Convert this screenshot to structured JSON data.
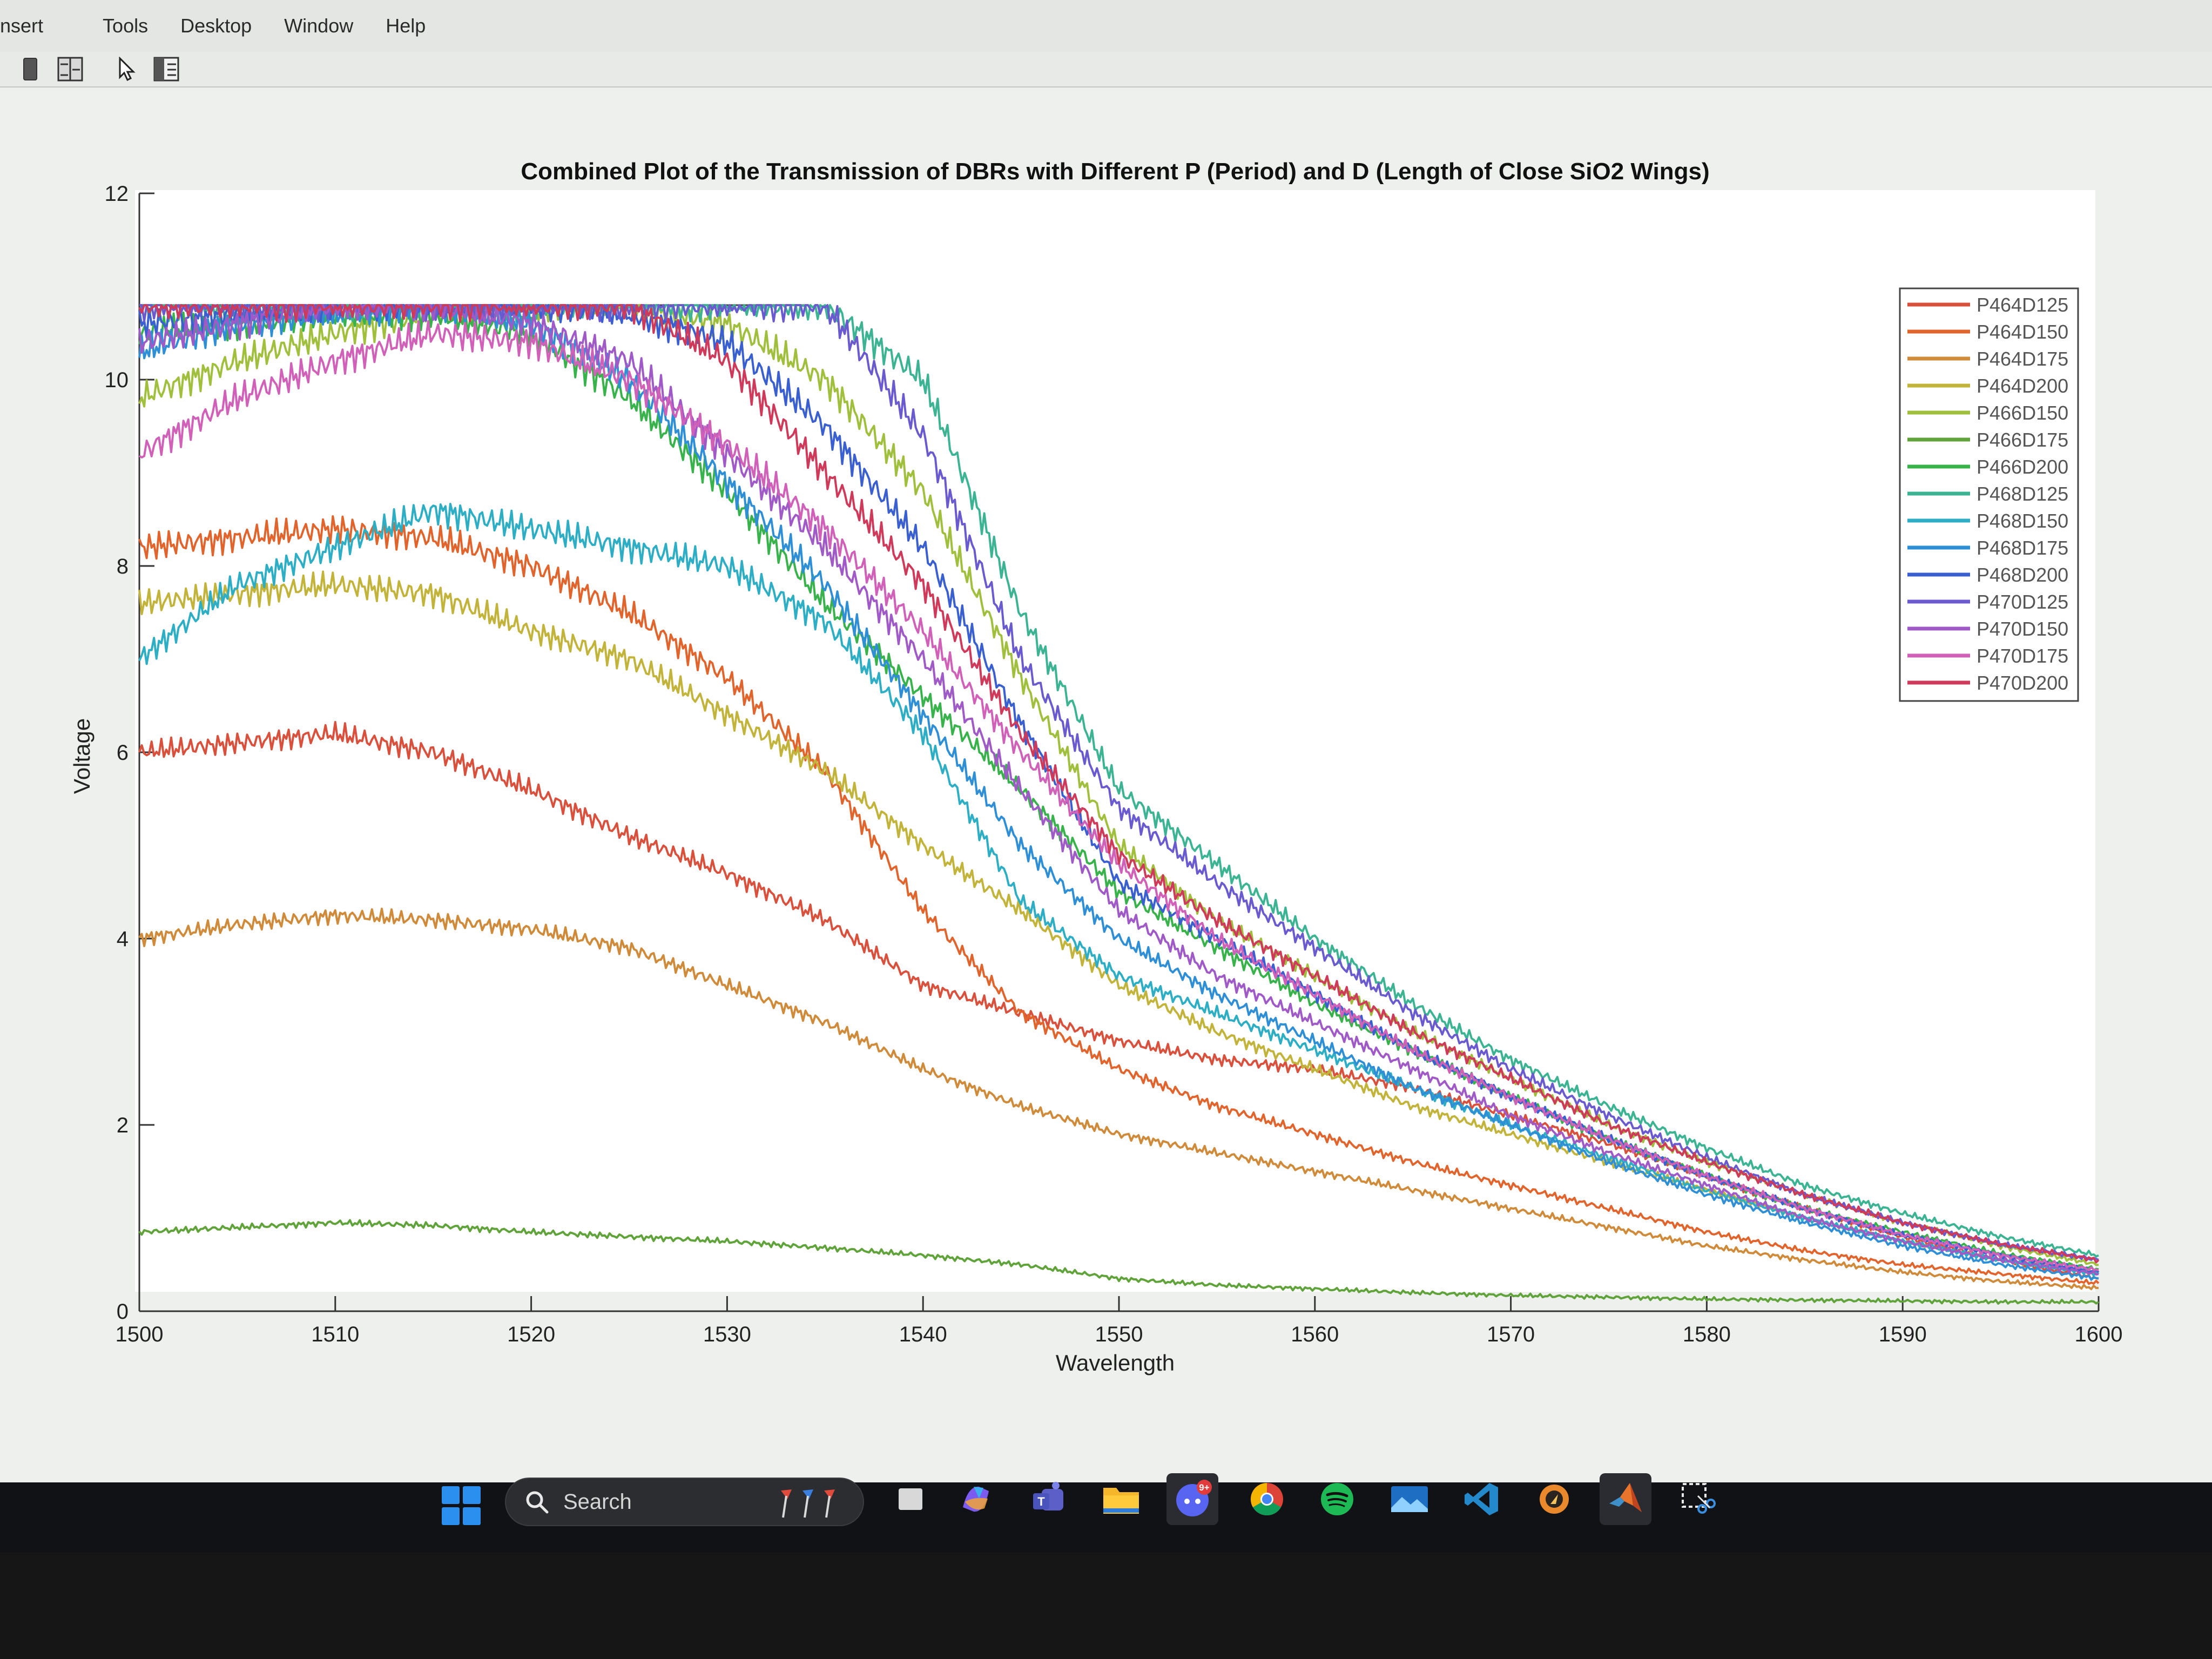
{
  "menubar": {
    "items": [
      "nsert",
      "Tools",
      "Desktop",
      "Window",
      "Help"
    ]
  },
  "toolbar": {
    "icons": [
      "dock-figure-icon",
      "property-editor-icon",
      "select-pointer-icon",
      "layout-panel-icon"
    ]
  },
  "taskbar": {
    "search_label": "Search",
    "badge": "9+",
    "apps": [
      "file-manager-icon",
      "copilot-icon",
      "teams-icon",
      "file-explorer-icon",
      "discord-icon",
      "chrome-icon",
      "spotify-icon",
      "photos-icon",
      "vscode-icon",
      "app-icon",
      "matlab-icon",
      "snipping-tool-icon"
    ]
  },
  "chart_data": {
    "type": "line",
    "title": "Combined Plot of the Transmission of DBRs with Different P (Period) and D (Length of Close SiO2 Wings)",
    "xlabel": "Wavelength",
    "ylabel": "Voltage",
    "xlim": [
      1500,
      1600
    ],
    "ylim": [
      0,
      12
    ],
    "xticks": [
      "1500",
      "1510",
      "1520",
      "1530",
      "1540",
      "1550",
      "1560",
      "1570",
      "1580",
      "1590",
      "1600"
    ],
    "yticks": [
      "0",
      "2",
      "4",
      "6",
      "8",
      "10",
      "12"
    ],
    "legend_position": "top-right",
    "grid": false,
    "saturation_level": 10.8,
    "x": [
      1500,
      1505,
      1510,
      1515,
      1520,
      1525,
      1530,
      1535,
      1540,
      1545,
      1550,
      1555,
      1560,
      1565,
      1570,
      1575,
      1580,
      1585,
      1590,
      1595,
      1600
    ],
    "series": [
      {
        "name": "P464D125",
        "color": "#d9503c",
        "values": [
          6.0,
          6.1,
          6.2,
          6.0,
          5.6,
          5.1,
          4.7,
          4.2,
          3.5,
          3.2,
          2.9,
          2.7,
          2.6,
          2.4,
          2.1,
          1.8,
          1.45,
          1.1,
          0.8,
          0.55,
          0.35
        ]
      },
      {
        "name": "P464D150",
        "color": "#e0642c",
        "values": [
          8.2,
          8.3,
          8.4,
          8.3,
          8.0,
          7.5,
          6.8,
          5.8,
          4.3,
          3.2,
          2.6,
          2.2,
          1.9,
          1.6,
          1.35,
          1.1,
          0.85,
          0.65,
          0.5,
          0.4,
          0.3
        ]
      },
      {
        "name": "P464D175",
        "color": "#cf8a3a",
        "values": [
          4.0,
          4.15,
          4.25,
          4.2,
          4.1,
          3.9,
          3.5,
          3.1,
          2.6,
          2.2,
          1.9,
          1.7,
          1.5,
          1.3,
          1.1,
          0.9,
          0.7,
          0.55,
          0.42,
          0.32,
          0.25
        ]
      },
      {
        "name": "P464D200",
        "color": "#c2b33a",
        "values": [
          7.6,
          7.7,
          7.8,
          7.7,
          7.3,
          7.0,
          6.4,
          5.8,
          5.0,
          4.3,
          3.5,
          3.0,
          2.6,
          2.2,
          1.9,
          1.6,
          1.3,
          1.0,
          0.75,
          0.55,
          0.4
        ]
      },
      {
        "name": "P466D150",
        "color": "#9fbf3d",
        "values": [
          9.8,
          10.2,
          10.5,
          10.7,
          10.8,
          10.8,
          10.6,
          10.0,
          8.8,
          6.8,
          5.0,
          4.2,
          3.6,
          3.0,
          2.5,
          2.0,
          1.6,
          1.25,
          0.95,
          0.7,
          0.5
        ]
      },
      {
        "name": "P466D175",
        "color": "#5fa33a",
        "values": [
          0.85,
          0.9,
          0.95,
          0.92,
          0.85,
          0.8,
          0.75,
          0.68,
          0.6,
          0.5,
          0.35,
          0.28,
          0.24,
          0.2,
          0.17,
          0.15,
          0.13,
          0.12,
          0.11,
          0.1,
          0.1
        ]
      },
      {
        "name": "P466D200",
        "color": "#38b24a",
        "values": [
          10.5,
          10.6,
          10.7,
          10.7,
          10.5,
          9.8,
          8.8,
          7.6,
          6.6,
          5.6,
          4.5,
          3.9,
          3.3,
          2.8,
          2.3,
          1.85,
          1.45,
          1.1,
          0.85,
          0.62,
          0.45
        ]
      },
      {
        "name": "P468D125",
        "color": "#3cb494",
        "values": [
          10.8,
          10.8,
          10.8,
          10.8,
          10.8,
          10.8,
          10.8,
          10.8,
          10.0,
          7.5,
          5.6,
          4.8,
          4.0,
          3.3,
          2.7,
          2.2,
          1.75,
          1.35,
          1.05,
          0.8,
          0.6
        ]
      },
      {
        "name": "P468D150",
        "color": "#2eaec4",
        "values": [
          7.0,
          7.8,
          8.2,
          8.6,
          8.4,
          8.2,
          8.0,
          7.4,
          6.2,
          4.4,
          3.6,
          3.2,
          2.8,
          2.4,
          2.0,
          1.65,
          1.3,
          1.0,
          0.75,
          0.55,
          0.4
        ]
      },
      {
        "name": "P468D175",
        "color": "#2f8fd6",
        "values": [
          10.3,
          10.6,
          10.7,
          10.8,
          10.6,
          10.0,
          8.9,
          7.8,
          6.4,
          5.0,
          4.0,
          3.4,
          2.9,
          2.4,
          2.0,
          1.6,
          1.25,
          0.95,
          0.7,
          0.5,
          0.35
        ]
      },
      {
        "name": "P468D200",
        "color": "#3a5fd0",
        "values": [
          10.6,
          10.7,
          10.8,
          10.8,
          10.8,
          10.7,
          10.4,
          9.5,
          8.2,
          6.3,
          4.6,
          4.0,
          3.4,
          2.8,
          2.3,
          1.85,
          1.45,
          1.1,
          0.82,
          0.6,
          0.42
        ]
      },
      {
        "name": "P470D125",
        "color": "#6a5ad0",
        "values": [
          10.8,
          10.8,
          10.8,
          10.8,
          10.8,
          10.8,
          10.8,
          10.8,
          9.4,
          7.0,
          5.4,
          4.6,
          3.9,
          3.2,
          2.6,
          2.1,
          1.65,
          1.25,
          0.95,
          0.72,
          0.55
        ]
      },
      {
        "name": "P470D150",
        "color": "#a05ac8",
        "values": [
          10.4,
          10.6,
          10.8,
          10.8,
          10.6,
          10.2,
          9.2,
          8.2,
          7.0,
          5.6,
          4.3,
          3.6,
          3.1,
          2.6,
          2.1,
          1.7,
          1.35,
          1.0,
          0.75,
          0.55,
          0.4
        ]
      },
      {
        "name": "P470D175",
        "color": "#d060b8",
        "values": [
          9.2,
          9.8,
          10.2,
          10.5,
          10.4,
          10.0,
          9.3,
          8.4,
          7.3,
          6.0,
          4.8,
          4.0,
          3.4,
          2.8,
          2.3,
          1.85,
          1.45,
          1.1,
          0.82,
          0.6,
          0.44
        ]
      },
      {
        "name": "P470D200",
        "color": "#d03a5a",
        "values": [
          10.8,
          10.8,
          10.8,
          10.8,
          10.8,
          10.8,
          10.2,
          9.0,
          7.8,
          6.2,
          4.9,
          4.2,
          3.6,
          3.0,
          2.5,
          2.0,
          1.6,
          1.25,
          0.95,
          0.72,
          0.55
        ]
      }
    ]
  }
}
